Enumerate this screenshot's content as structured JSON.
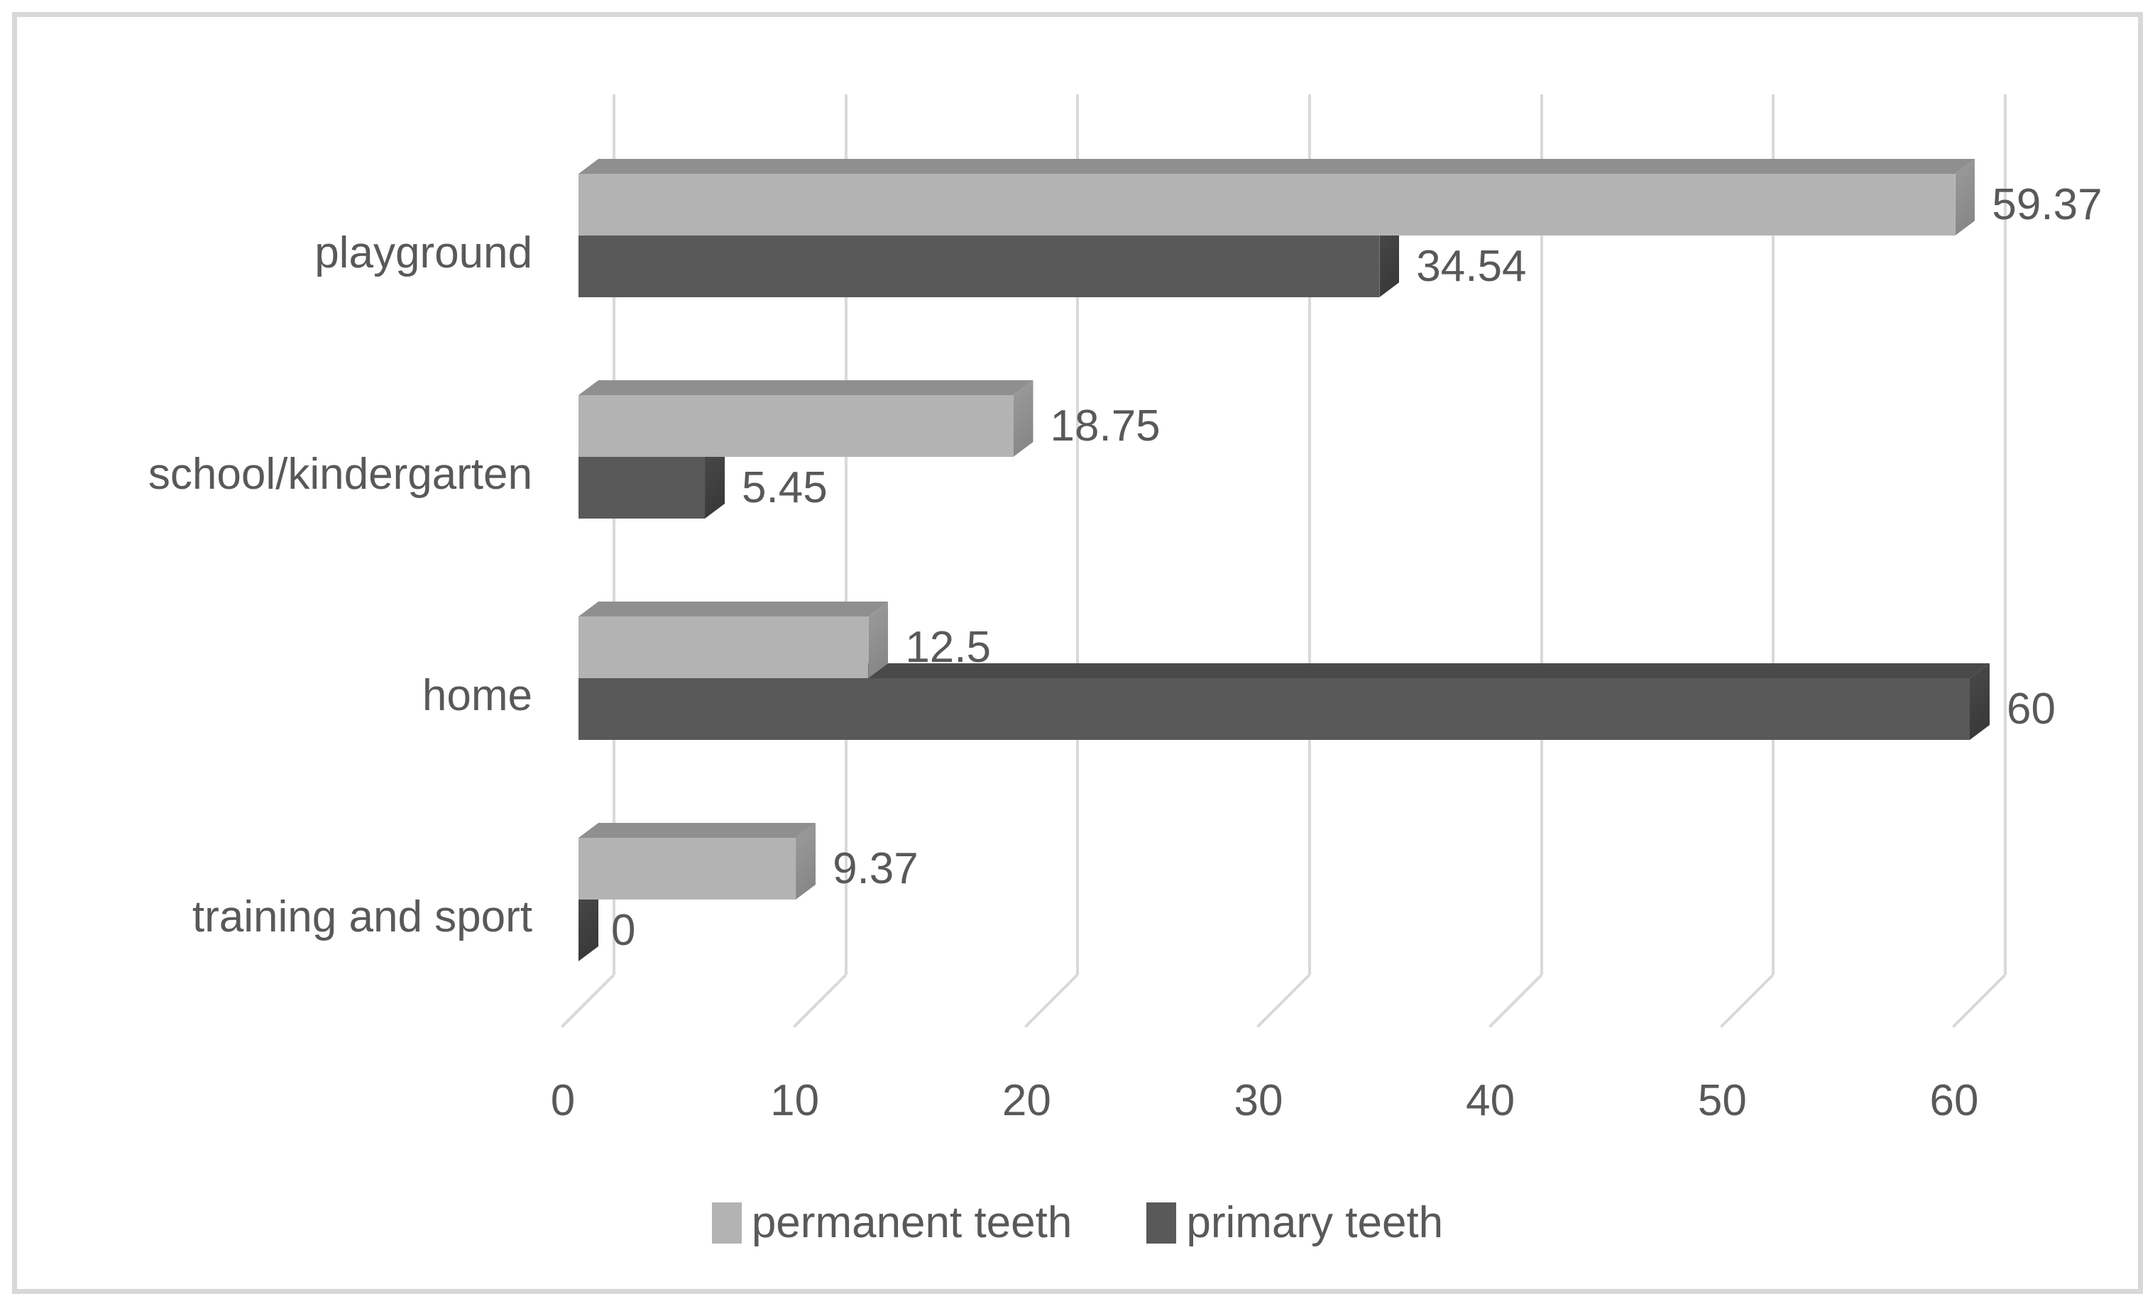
{
  "chart_data": {
    "type": "bar",
    "orientation": "horizontal",
    "style": "3d",
    "title": "",
    "categories": [
      "playground",
      "school/kindergarten",
      "home",
      "training and sport"
    ],
    "series": [
      {
        "name": "permanent teeth",
        "values": [
          59.37,
          18.75,
          12.5,
          9.37
        ],
        "value_labels": [
          "59.37",
          "18.75",
          "12.5",
          "9.37"
        ],
        "color": "#b3b3b3",
        "color_top": "#8f8f8f",
        "color_end_from": "#9c9c9c",
        "color_end_to": "#838383"
      },
      {
        "name": "primary teeth",
        "values": [
          34.54,
          5.45,
          60,
          0
        ],
        "value_labels": [
          "34.54",
          "5.45",
          "60",
          "0"
        ],
        "color": "#595959",
        "color_top": "#494949",
        "color_end_from": "#4a4a4a",
        "color_end_to": "#363636"
      }
    ],
    "x_axis": {
      "min": 0,
      "max": 60,
      "ticks": [
        "0",
        "10",
        "20",
        "30",
        "40",
        "50",
        "60"
      ],
      "grid": true
    },
    "legend": {
      "position": "bottom",
      "entries": [
        "permanent teeth",
        "primary teeth"
      ]
    },
    "colors": {
      "gridline": "#d9d9d9",
      "frame_border": "#d8d8d8",
      "text": "#595959",
      "background": "#ffffff"
    }
  }
}
